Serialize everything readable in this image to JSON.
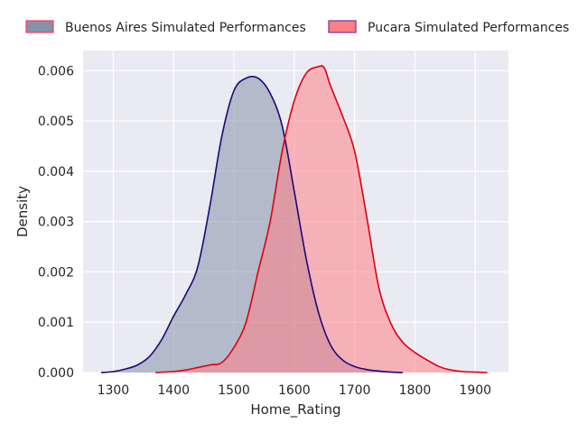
{
  "chart_data": {
    "type": "area",
    "subtype": "kde-density",
    "xlabel": "Home_Rating",
    "ylabel": "Density",
    "xlim": [
      1250,
      1955
    ],
    "ylim": [
      0,
      0.0064
    ],
    "x_ticks": [
      1300,
      1400,
      1500,
      1600,
      1700,
      1800,
      1900
    ],
    "y_ticks": [
      0.0,
      0.001,
      0.002,
      0.003,
      0.004,
      0.005,
      0.006
    ],
    "y_tick_labels": [
      "0.000",
      "0.001",
      "0.002",
      "0.003",
      "0.004",
      "0.005",
      "0.006"
    ],
    "grid": true,
    "legend_position": "top",
    "background": "#EAEAF2",
    "series": [
      {
        "name": "Buenos Aires Simulated Performances",
        "fill": "#8592A8",
        "line": "#1a0a78",
        "legend_edge": "#ff3b5c",
        "x": [
          1280,
          1300,
          1320,
          1340,
          1360,
          1380,
          1400,
          1420,
          1440,
          1460,
          1480,
          1500,
          1520,
          1540,
          1560,
          1580,
          1600,
          1620,
          1640,
          1660,
          1680,
          1700,
          1720,
          1740,
          1760,
          1780
        ],
        "y": [
          0.0,
          2e-05,
          7e-05,
          0.00015,
          0.00032,
          0.00065,
          0.00112,
          0.00155,
          0.0021,
          0.0033,
          0.0047,
          0.0056,
          0.00585,
          0.00585,
          0.00555,
          0.0049,
          0.0036,
          0.00225,
          0.0012,
          0.00055,
          0.00025,
          0.00012,
          6e-05,
          3e-05,
          1e-05,
          0.0
        ]
      },
      {
        "name": "Pucara Simulated Performances",
        "fill": "#FF7F86",
        "line": "#e00010",
        "legend_edge": "#7a2fa0",
        "x": [
          1370,
          1400,
          1420,
          1440,
          1460,
          1480,
          1500,
          1520,
          1540,
          1560,
          1580,
          1600,
          1620,
          1640,
          1650,
          1660,
          1680,
          1700,
          1720,
          1740,
          1760,
          1780,
          1800,
          1820,
          1840,
          1860,
          1880,
          1900,
          1920
        ],
        "y": [
          0.0,
          2e-05,
          5e-05,
          0.0001,
          0.00015,
          0.0002,
          0.0005,
          0.001,
          0.002,
          0.003,
          0.0044,
          0.0054,
          0.00595,
          0.00608,
          0.00605,
          0.0057,
          0.0051,
          0.0044,
          0.0031,
          0.0017,
          0.00098,
          0.0006,
          0.0004,
          0.00025,
          0.00012,
          5e-05,
          2e-05,
          1e-05,
          0.0
        ]
      }
    ]
  }
}
